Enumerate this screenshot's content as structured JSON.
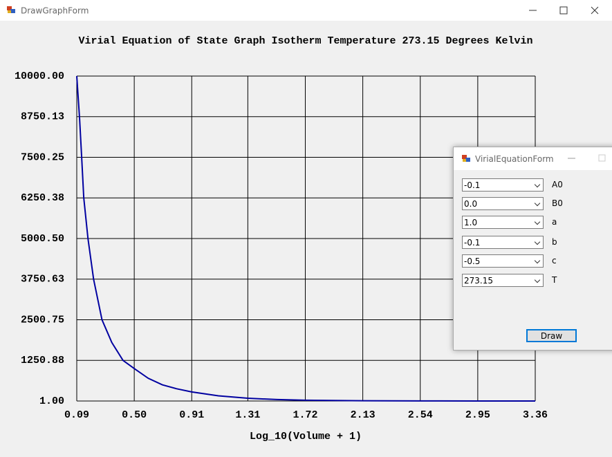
{
  "window": {
    "title": "DrawGraphForm"
  },
  "chart_data": {
    "type": "line",
    "title": "Virial Equation of State Graph Isotherm Temperature 273.15 Degrees Kelvin",
    "x_label": "Log_10(Volume + 1)",
    "x": [
      0.09,
      0.11,
      0.125,
      0.14,
      0.17,
      0.21,
      0.27,
      0.34,
      0.42,
      0.5,
      0.6,
      0.7,
      0.8,
      0.91,
      1.1,
      1.31,
      1.52,
      1.72,
      2.13,
      2.54,
      2.95,
      3.36
    ],
    "values": [
      10000,
      8700,
      7500,
      6250,
      5000,
      3750,
      2500,
      1800,
      1250,
      1000,
      700,
      500,
      380,
      280,
      160,
      85,
      45,
      25,
      8,
      3,
      1.5,
      1
    ],
    "color": "#0000a0",
    "xlim": [
      0.09,
      3.36
    ],
    "xticks": [
      0.09,
      {
        "value": 0.5,
        "label": "0.50"
      },
      0.91,
      1.31,
      1.72,
      2.13,
      2.54,
      2.95,
      3.36
    ],
    "ylim": [
      1,
      10000
    ],
    "yticks": [
      {
        "value": 1,
        "label": "1.00"
      },
      1250.88,
      2500.75,
      3750.63,
      {
        "value": 5000.5,
        "label": "5000.50"
      },
      6250.38,
      7500.25,
      8750.13,
      {
        "value": 10000,
        "label": "10000.00"
      }
    ],
    "grid": true
  },
  "dialog": {
    "title": "VirialEquationForm",
    "fields": [
      {
        "value": "-0.1",
        "label": "A0"
      },
      {
        "value": "0.0",
        "label": "B0"
      },
      {
        "value": "1.0",
        "label": "a"
      },
      {
        "value": "-0.1",
        "label": "b"
      },
      {
        "value": "-0.5",
        "label": "c"
      },
      {
        "value": "273.15",
        "label": "T"
      }
    ],
    "button": "Draw"
  }
}
